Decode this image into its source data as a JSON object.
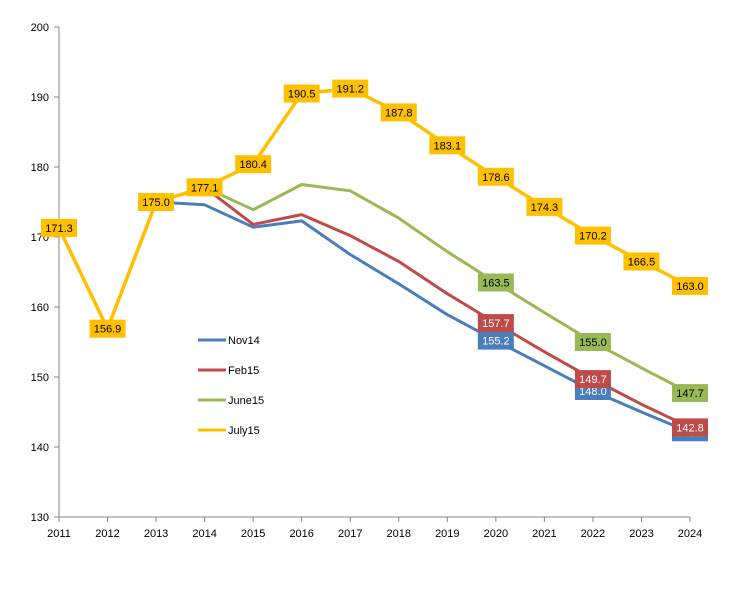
{
  "chart_data": {
    "type": "line",
    "title": "",
    "xlabel": "",
    "ylabel": "",
    "ylim": [
      130,
      200
    ],
    "yticks": [
      "130",
      "140",
      "150",
      "160",
      "170",
      "180",
      "190",
      "200"
    ],
    "x": [
      "2011",
      "2012",
      "2013",
      "2014",
      "2015",
      "2016",
      "2017",
      "2018",
      "2019",
      "2020",
      "2021",
      "2022",
      "2023",
      "2024"
    ],
    "grid": false,
    "legend_position": "inside-left",
    "series": [
      {
        "name": "Nov14",
        "color": "#4a7ebb",
        "label_text_color": "#ffffff",
        "values": [
          171.3,
          156.9,
          175.0,
          174.6,
          171.4,
          172.3,
          167.5,
          163.3,
          158.9,
          155.2,
          151.6,
          148.0,
          145.0,
          142.1
        ],
        "labels": [
          null,
          null,
          null,
          null,
          null,
          null,
          null,
          null,
          null,
          "155.2",
          null,
          "148.0",
          null,
          "142.1"
        ]
      },
      {
        "name": "Feb15",
        "color": "#be4b48",
        "label_text_color": "#ffffff",
        "values": [
          171.3,
          156.9,
          175.0,
          177.1,
          171.8,
          173.2,
          170.2,
          166.5,
          161.9,
          157.7,
          153.6,
          149.7,
          146.1,
          142.8
        ],
        "labels": [
          null,
          null,
          null,
          null,
          null,
          null,
          null,
          null,
          null,
          "157.7",
          null,
          "149.7",
          null,
          "142.8"
        ]
      },
      {
        "name": "June15",
        "color": "#98b954",
        "label_text_color": "#000000",
        "values": [
          171.3,
          156.9,
          175.0,
          177.1,
          173.9,
          177.5,
          176.6,
          172.7,
          167.9,
          163.5,
          159.2,
          155.0,
          151.3,
          147.7
        ],
        "labels": [
          null,
          null,
          null,
          null,
          null,
          null,
          null,
          null,
          null,
          "163.5",
          null,
          "155.0",
          null,
          "147.7"
        ]
      },
      {
        "name": "July15",
        "color": "#ffc000",
        "label_text_color": "#000000",
        "values": [
          171.3,
          156.9,
          175.0,
          177.1,
          180.4,
          190.5,
          191.2,
          187.8,
          183.1,
          178.6,
          174.3,
          170.2,
          166.5,
          163.0
        ],
        "labels": [
          "171.3",
          "156.9",
          "175.0",
          "177.1",
          "180.4",
          "190.5",
          "191.2",
          "187.8",
          "183.1",
          "178.6",
          "174.3",
          "170.2",
          "166.5",
          "163.0"
        ]
      }
    ]
  }
}
